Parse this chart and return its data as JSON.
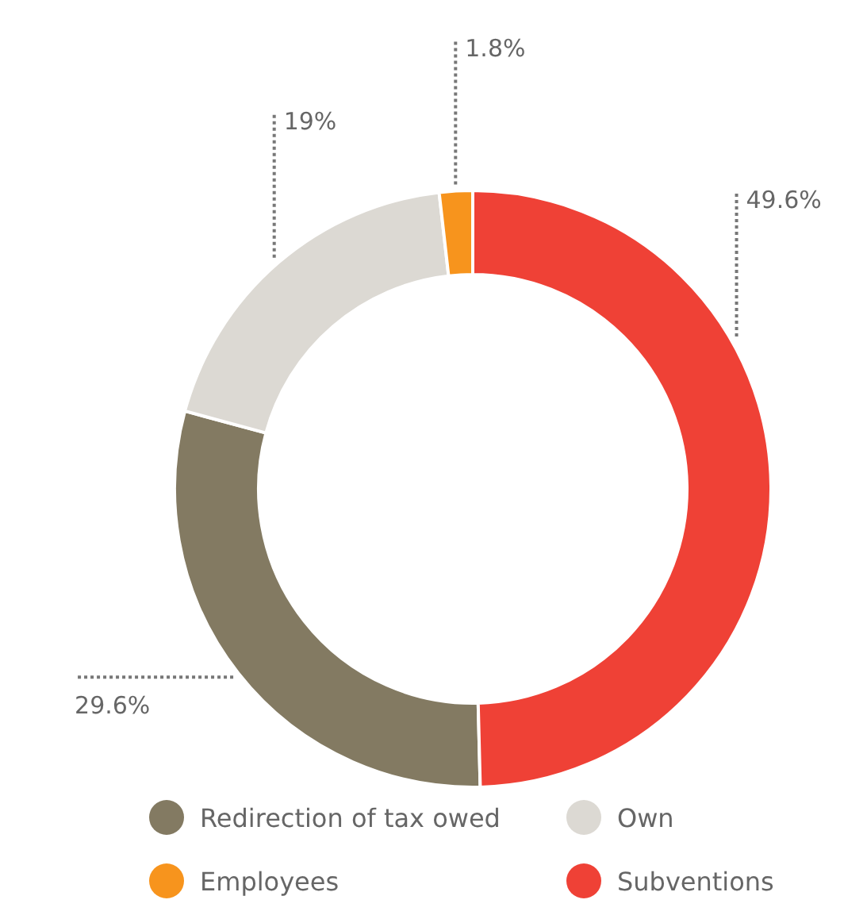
{
  "chart_data": {
    "type": "donut",
    "categories": [
      "Redirection of tax owed",
      "Own",
      "Employees",
      "Subventions"
    ],
    "values": [
      29.6,
      19,
      1.8,
      49.6
    ],
    "colors": [
      "#837a62",
      "#dcd9d3",
      "#f7941d",
      "#ef4136"
    ],
    "value_labels": [
      "29.6%",
      "19%",
      "1.8%",
      "49.6%"
    ],
    "legend": "bottom"
  }
}
